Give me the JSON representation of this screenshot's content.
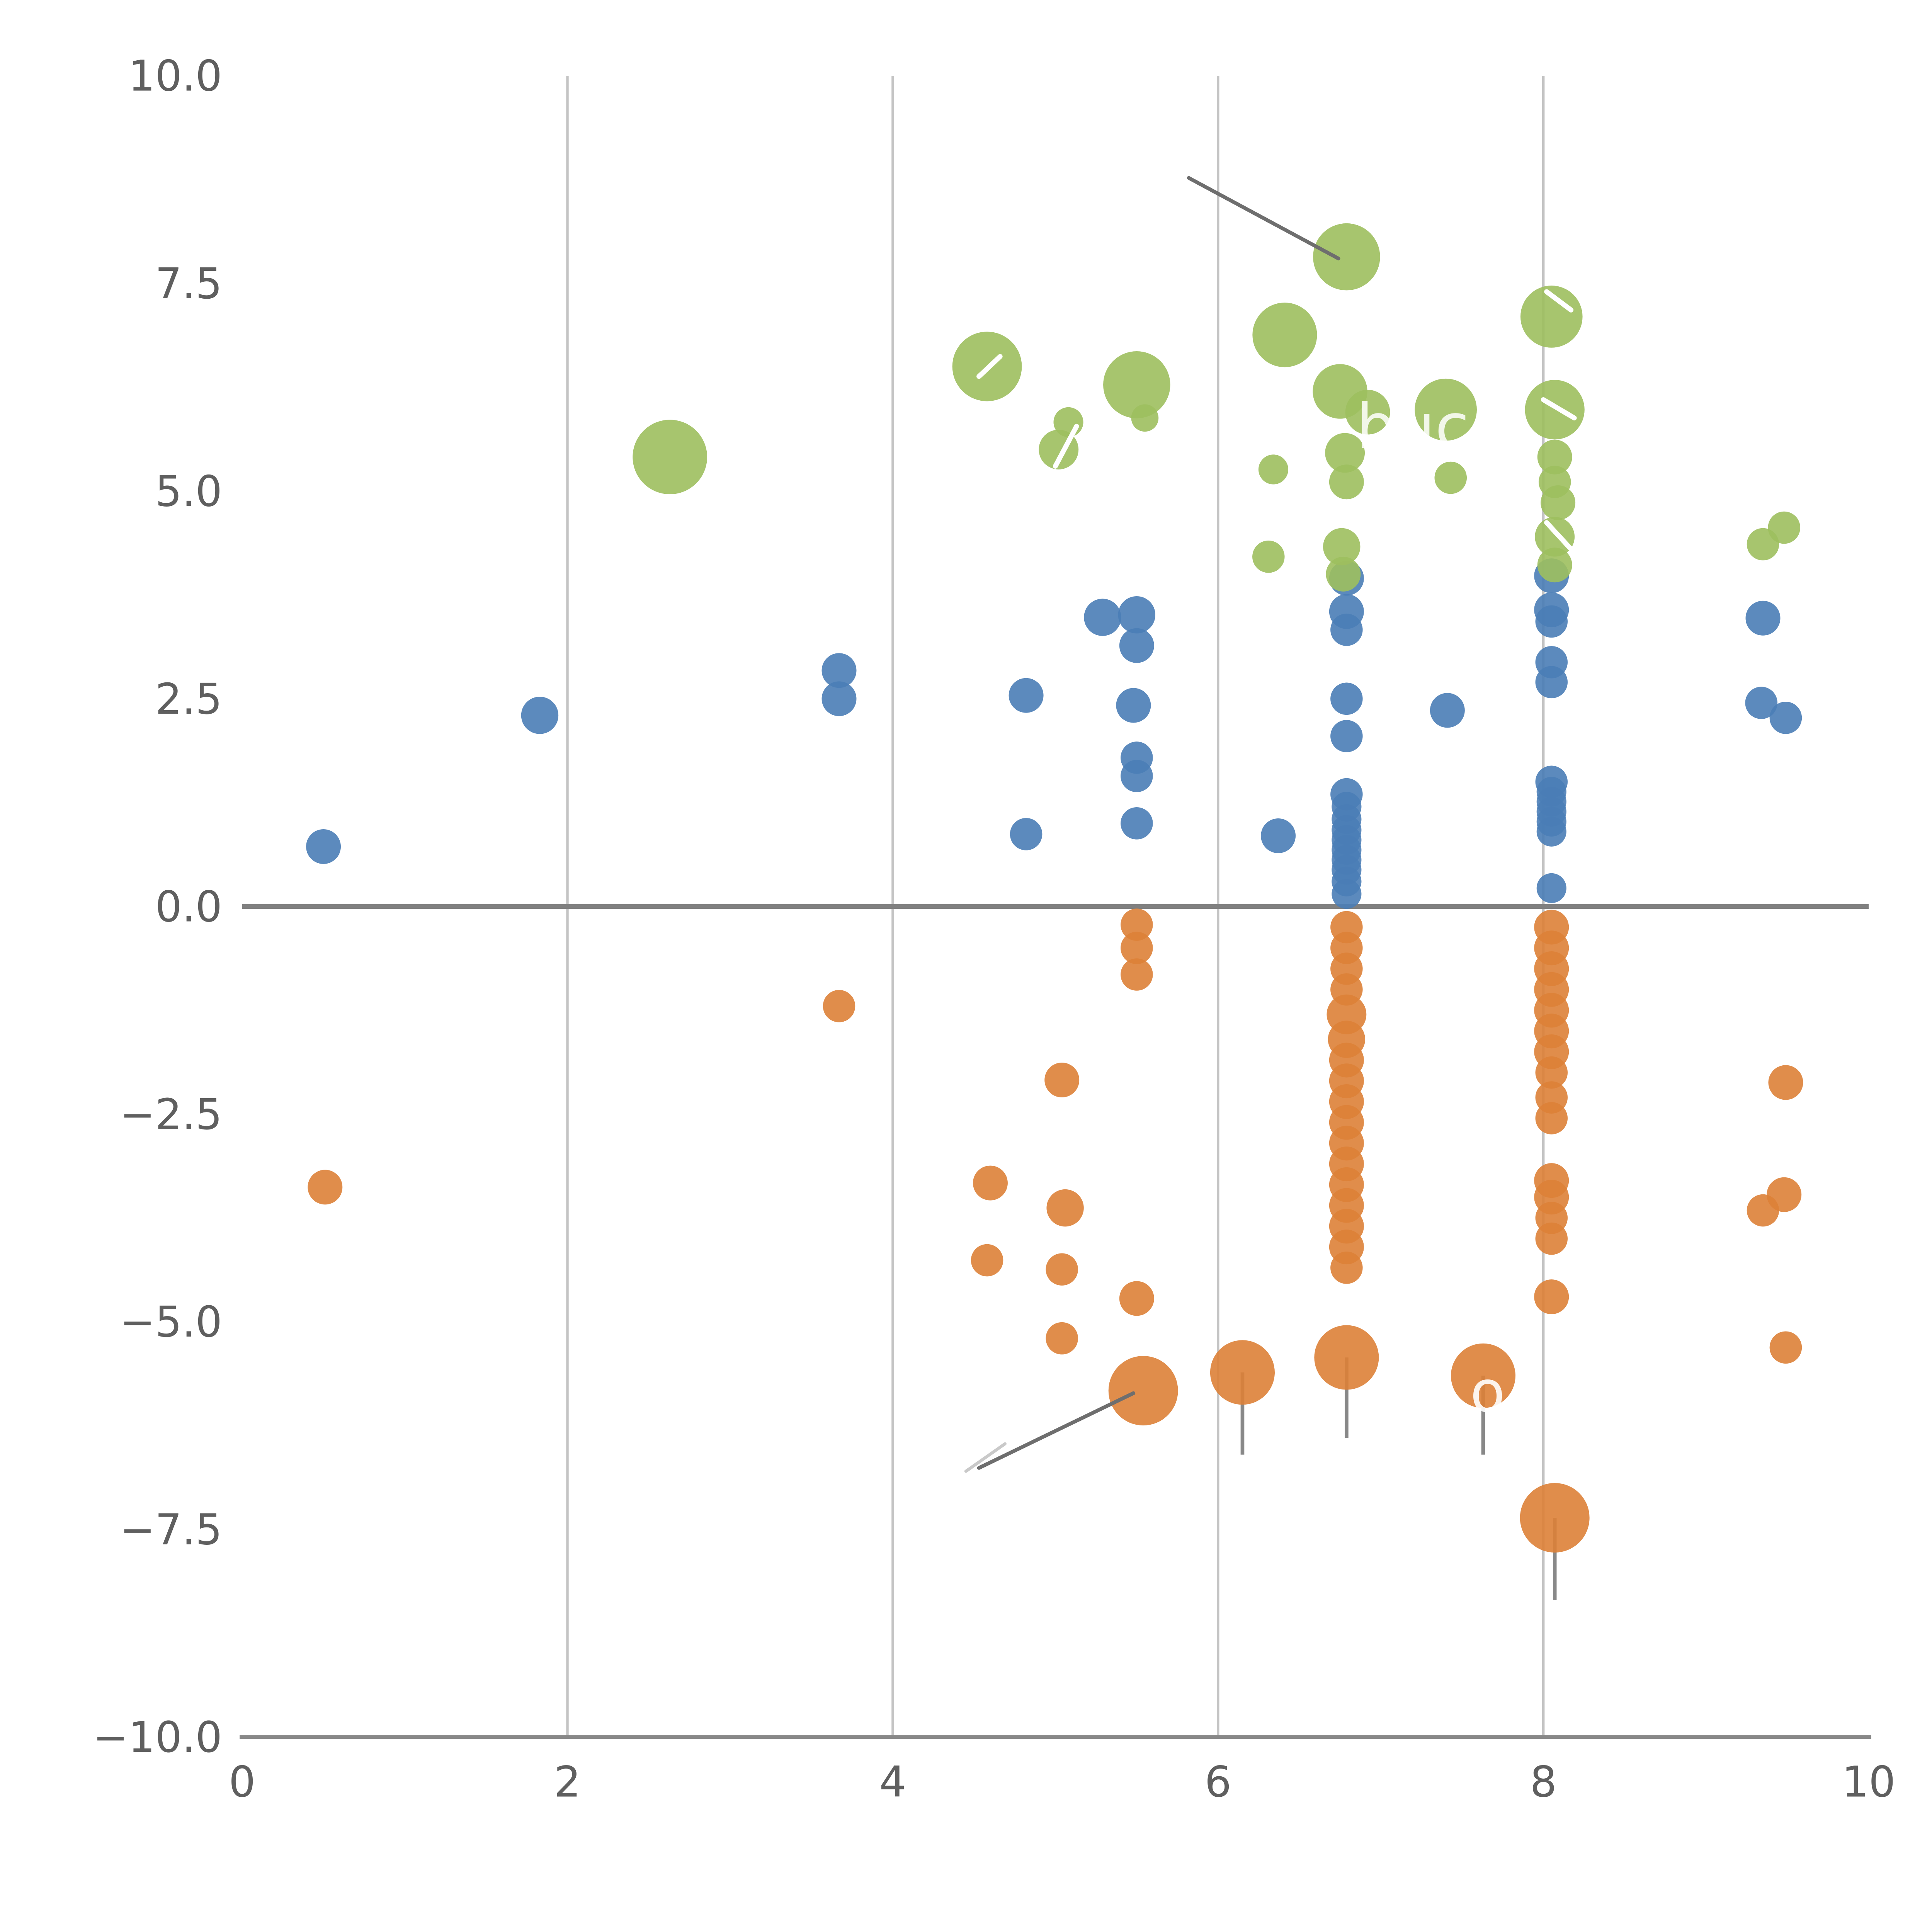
{
  "chart_data": {
    "type": "scatter",
    "title": "",
    "xlabel": "",
    "ylabel": "",
    "xlim": [
      0,
      10
    ],
    "ylim": [
      -10,
      10
    ],
    "x_tick_values": [
      0,
      2,
      4,
      6,
      8,
      10
    ],
    "x_tick_labels": [
      "0",
      "2",
      "4",
      "6",
      "8",
      "10"
    ],
    "y_tick_values": [
      -10,
      -7.5,
      -5,
      -2.5,
      0,
      2.5,
      5,
      7.5,
      10
    ],
    "y_tick_labels": [
      "−10.0",
      "−7.5",
      "−5.0",
      "−2.5",
      "0.0",
      "2.5",
      "5.0",
      "7.5",
      "10.0"
    ],
    "grid": {
      "vertical_lines": [
        2,
        4,
        6,
        8
      ],
      "color": "#c4c4c4",
      "width": 2
    },
    "zero_line": {
      "y": 0,
      "color": "#808080",
      "width": 4
    },
    "axis_color": "#888888",
    "tick_label_color": "#5f5f5f",
    "marker_opacity": 0.9,
    "series": [
      {
        "name": "blue",
        "color": "#4a7db6",
        "points": [
          [
            0.5,
            0.72,
            14
          ],
          [
            1.83,
            2.3,
            15
          ],
          [
            3.67,
            2.84,
            14
          ],
          [
            3.67,
            2.5,
            14
          ],
          [
            4.82,
            2.54,
            14
          ],
          [
            4.82,
            0.87,
            13
          ],
          [
            5.29,
            3.48,
            15
          ],
          [
            5.5,
            3.51,
            15
          ],
          [
            5.5,
            3.14,
            14
          ],
          [
            5.48,
            2.42,
            14
          ],
          [
            5.5,
            1.79,
            13
          ],
          [
            5.5,
            1.57,
            13
          ],
          [
            5.5,
            1.0,
            13
          ],
          [
            6.37,
            0.85,
            14
          ],
          [
            6.79,
            3.95,
            14
          ],
          [
            6.79,
            3.55,
            14
          ],
          [
            6.79,
            3.33,
            13
          ],
          [
            6.79,
            2.5,
            13
          ],
          [
            6.79,
            2.05,
            13
          ],
          [
            6.79,
            1.35,
            13
          ],
          [
            6.79,
            1.2,
            12
          ],
          [
            6.79,
            1.05,
            12
          ],
          [
            6.79,
            0.92,
            12
          ],
          [
            6.79,
            0.8,
            12
          ],
          [
            6.79,
            0.68,
            12
          ],
          [
            6.79,
            0.56,
            12
          ],
          [
            6.79,
            0.44,
            12
          ],
          [
            6.79,
            0.3,
            12
          ],
          [
            6.79,
            0.15,
            12
          ],
          [
            7.41,
            2.36,
            14
          ],
          [
            8.05,
            3.98,
            14
          ],
          [
            8.05,
            3.57,
            14
          ],
          [
            8.05,
            3.43,
            13
          ],
          [
            8.05,
            2.94,
            13
          ],
          [
            8.05,
            2.7,
            13
          ],
          [
            8.05,
            1.5,
            13
          ],
          [
            8.05,
            1.38,
            12
          ],
          [
            8.05,
            1.26,
            12
          ],
          [
            8.05,
            1.14,
            12
          ],
          [
            8.05,
            1.02,
            12
          ],
          [
            8.05,
            0.9,
            12
          ],
          [
            8.05,
            0.22,
            12
          ],
          [
            9.35,
            3.47,
            14
          ],
          [
            9.34,
            2.45,
            13
          ],
          [
            9.49,
            2.27,
            13
          ]
        ]
      },
      {
        "name": "orange",
        "color": "#dd8137",
        "points": [
          [
            0.51,
            -3.38,
            14
          ],
          [
            3.67,
            -1.2,
            13
          ],
          [
            4.6,
            -3.33,
            14
          ],
          [
            4.58,
            -4.26,
            13
          ],
          [
            5.04,
            -2.09,
            14
          ],
          [
            5.06,
            -3.63,
            15
          ],
          [
            5.04,
            -4.37,
            13
          ],
          [
            5.04,
            -5.2,
            13
          ],
          [
            5.5,
            -0.22,
            13
          ],
          [
            5.5,
            -0.5,
            13
          ],
          [
            5.5,
            -0.82,
            13
          ],
          [
            5.5,
            -4.72,
            14
          ],
          [
            5.54,
            -5.83,
            28
          ],
          [
            6.15,
            -5.61,
            26
          ],
          [
            6.79,
            -0.25,
            13
          ],
          [
            6.79,
            -0.5,
            13
          ],
          [
            6.79,
            -0.75,
            13
          ],
          [
            6.79,
            -1.0,
            13
          ],
          [
            6.79,
            -1.3,
            16
          ],
          [
            6.79,
            -1.6,
            15
          ],
          [
            6.79,
            -1.85,
            14
          ],
          [
            6.79,
            -2.1,
            14
          ],
          [
            6.79,
            -2.35,
            14
          ],
          [
            6.79,
            -2.6,
            14
          ],
          [
            6.79,
            -2.85,
            14
          ],
          [
            6.79,
            -3.1,
            14
          ],
          [
            6.79,
            -3.35,
            14
          ],
          [
            6.79,
            -3.6,
            14
          ],
          [
            6.79,
            -3.85,
            14
          ],
          [
            6.79,
            -4.1,
            14
          ],
          [
            6.79,
            -4.35,
            13
          ],
          [
            6.79,
            -5.43,
            26
          ],
          [
            7.63,
            -5.65,
            26
          ],
          [
            8.05,
            -0.25,
            14
          ],
          [
            8.05,
            -0.5,
            14
          ],
          [
            8.05,
            -0.75,
            14
          ],
          [
            8.05,
            -1.0,
            14
          ],
          [
            8.05,
            -1.25,
            14
          ],
          [
            8.05,
            -1.5,
            14
          ],
          [
            8.05,
            -1.75,
            14
          ],
          [
            8.05,
            -2.0,
            13
          ],
          [
            8.05,
            -2.3,
            13
          ],
          [
            8.05,
            -2.55,
            13
          ],
          [
            8.05,
            -3.3,
            14
          ],
          [
            8.05,
            -3.5,
            14
          ],
          [
            8.05,
            -3.75,
            13
          ],
          [
            8.05,
            -4.0,
            13
          ],
          [
            8.05,
            -4.7,
            14
          ],
          [
            8.07,
            -7.36,
            28
          ],
          [
            9.49,
            -2.12,
            14
          ],
          [
            9.35,
            -3.66,
            13
          ],
          [
            9.48,
            -3.47,
            14
          ],
          [
            9.49,
            -5.31,
            13
          ]
        ]
      },
      {
        "name": "green",
        "color": "#9dbf5e",
        "points": [
          [
            2.63,
            5.41,
            30
          ],
          [
            4.58,
            6.5,
            28
          ],
          [
            5.02,
            5.5,
            16
          ],
          [
            5.08,
            5.83,
            12
          ],
          [
            5.5,
            6.28,
            27
          ],
          [
            5.55,
            5.88,
            11
          ],
          [
            6.41,
            6.88,
            26
          ],
          [
            6.34,
            5.26,
            12
          ],
          [
            6.31,
            4.21,
            13
          ],
          [
            6.79,
            7.82,
            27
          ],
          [
            6.75,
            6.2,
            22
          ],
          [
            6.92,
            5.95,
            18
          ],
          [
            6.78,
            5.46,
            16
          ],
          [
            6.79,
            5.11,
            14
          ],
          [
            6.76,
            4.33,
            15
          ],
          [
            6.77,
            4.0,
            14
          ],
          [
            7.4,
            5.98,
            25
          ],
          [
            7.43,
            5.16,
            13
          ],
          [
            8.05,
            7.1,
            25
          ],
          [
            8.07,
            5.98,
            24
          ],
          [
            8.07,
            5.41,
            14
          ],
          [
            8.07,
            5.11,
            13
          ],
          [
            8.09,
            4.86,
            14
          ],
          [
            8.07,
            4.45,
            16
          ],
          [
            8.07,
            4.11,
            14
          ],
          [
            9.35,
            4.36,
            13
          ],
          [
            9.48,
            4.56,
            13
          ]
        ]
      }
    ],
    "error_bars": {
      "color": "#888888",
      "width": 3,
      "items": [
        {
          "x": 6.15,
          "y1": -5.61,
          "y2": -6.6
        },
        {
          "x": 6.79,
          "y1": -5.43,
          "y2": -6.4
        },
        {
          "x": 7.63,
          "y1": -5.65,
          "y2": -6.6
        },
        {
          "x": 8.07,
          "y1": -7.36,
          "y2": -8.35
        }
      ]
    },
    "annotations": {
      "lines": [
        {
          "x1": 5.82,
          "y1": 8.77,
          "x2": 6.74,
          "y2": 7.8,
          "color": "#6e6e6e",
          "width": 3
        },
        {
          "x1": 5.48,
          "y1": -5.86,
          "x2": 4.53,
          "y2": -6.76,
          "color": "#6e6e6e",
          "width": 3
        },
        {
          "x1": 4.69,
          "y1": -6.47,
          "x2": 4.45,
          "y2": -6.8,
          "color": "#c9c9c9",
          "width": 2.5
        },
        {
          "x1": 4.53,
          "y1": 6.38,
          "x2": 4.66,
          "y2": 6.62,
          "color": "#ffffff",
          "width": 4
        },
        {
          "x1": 5.0,
          "y1": 5.3,
          "x2": 5.13,
          "y2": 5.78,
          "color": "#ffffff",
          "width": 4
        },
        {
          "x1": 8.02,
          "y1": 7.4,
          "x2": 8.17,
          "y2": 7.18,
          "color": "#ffffff",
          "width": 4
        },
        {
          "x1": 8.0,
          "y1": 6.1,
          "x2": 8.19,
          "y2": 5.88,
          "color": "#ffffff",
          "width": 4
        },
        {
          "x1": 8.02,
          "y1": 4.62,
          "x2": 8.18,
          "y2": 4.28,
          "color": "#ffffff",
          "width": 4
        }
      ],
      "texts": [
        {
          "text": "buc",
          "x": 6.85,
          "y": 5.52,
          "color": "#ffffff",
          "size": 50,
          "opacity": 0.85
        },
        {
          "text": "o",
          "x": 7.55,
          "y": -6.08,
          "color": "#ffffff",
          "size": 46,
          "opacity": 0.9
        }
      ]
    }
  }
}
